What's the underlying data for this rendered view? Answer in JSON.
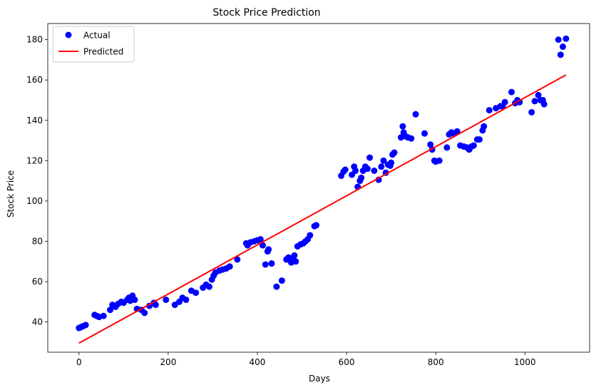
{
  "chart_data": {
    "type": "scatter",
    "title": "Stock Price Prediction",
    "xlabel": "Days",
    "ylabel": "Stock Price",
    "xlim": [
      -70,
      1145
    ],
    "ylim": [
      25,
      188
    ],
    "xticks": [
      0,
      200,
      400,
      600,
      800,
      1000
    ],
    "yticks": [
      40,
      60,
      80,
      100,
      120,
      140,
      160,
      180
    ],
    "grid": false,
    "legend_position": "top-left",
    "series": [
      {
        "name": "Actual",
        "kind": "scatter",
        "color": "#0000ff",
        "points": [
          [
            0,
            37
          ],
          [
            5,
            37.5
          ],
          [
            10,
            38
          ],
          [
            15,
            38.5
          ],
          [
            35,
            43.5
          ],
          [
            40,
            43
          ],
          [
            45,
            42.5
          ],
          [
            55,
            43
          ],
          [
            70,
            46
          ],
          [
            75,
            48.5
          ],
          [
            82,
            47.5
          ],
          [
            88,
            49
          ],
          [
            95,
            50
          ],
          [
            100,
            49.5
          ],
          [
            108,
            51
          ],
          [
            112,
            52
          ],
          [
            115,
            50.5
          ],
          [
            120,
            53
          ],
          [
            125,
            51
          ],
          [
            130,
            46.5
          ],
          [
            140,
            46
          ],
          [
            147,
            44.5
          ],
          [
            158,
            48
          ],
          [
            168,
            49.5
          ],
          [
            172,
            48.5
          ],
          [
            195,
            51
          ],
          [
            215,
            48.5
          ],
          [
            225,
            50
          ],
          [
            232,
            52
          ],
          [
            240,
            51
          ],
          [
            252,
            55.5
          ],
          [
            262,
            54.5
          ],
          [
            278,
            57
          ],
          [
            285,
            58.5
          ],
          [
            292,
            57.5
          ],
          [
            298,
            61
          ],
          [
            302,
            63
          ],
          [
            306,
            64.5
          ],
          [
            315,
            65.5
          ],
          [
            322,
            66
          ],
          [
            330,
            66.5
          ],
          [
            338,
            67.5
          ],
          [
            355,
            71
          ],
          [
            375,
            79
          ],
          [
            378,
            78
          ],
          [
            385,
            79.5
          ],
          [
            393,
            80
          ],
          [
            400,
            80.5
          ],
          [
            407,
            81
          ],
          [
            412,
            78
          ],
          [
            418,
            68.5
          ],
          [
            423,
            75
          ],
          [
            425,
            76
          ],
          [
            432,
            69
          ],
          [
            443,
            57.5
          ],
          [
            455,
            60.5
          ],
          [
            465,
            71
          ],
          [
            470,
            72
          ],
          [
            473,
            70.5
          ],
          [
            476,
            69.5
          ],
          [
            480,
            71.5
          ],
          [
            483,
            73
          ],
          [
            486,
            70
          ],
          [
            490,
            77.5
          ],
          [
            497,
            78.5
          ],
          [
            503,
            79
          ],
          [
            508,
            80
          ],
          [
            513,
            81
          ],
          [
            518,
            83
          ],
          [
            528,
            87.5
          ],
          [
            532,
            88
          ],
          [
            588,
            112.5
          ],
          [
            593,
            114.5
          ],
          [
            597,
            115.5
          ],
          [
            612,
            113
          ],
          [
            617,
            117
          ],
          [
            620,
            115
          ],
          [
            625,
            107
          ],
          [
            630,
            110
          ],
          [
            633,
            111.5
          ],
          [
            637,
            115
          ],
          [
            642,
            117
          ],
          [
            647,
            116
          ],
          [
            652,
            121.5
          ],
          [
            662,
            115
          ],
          [
            672,
            110.5
          ],
          [
            678,
            117
          ],
          [
            683,
            120
          ],
          [
            688,
            114
          ],
          [
            693,
            118
          ],
          [
            698,
            117.5
          ],
          [
            700,
            119
          ],
          [
            703,
            123
          ],
          [
            707,
            124
          ],
          [
            722,
            131.5
          ],
          [
            726,
            137
          ],
          [
            728,
            134
          ],
          [
            733,
            132
          ],
          [
            738,
            131.5
          ],
          [
            745,
            131
          ],
          [
            755,
            143
          ],
          [
            775,
            133.5
          ],
          [
            788,
            128
          ],
          [
            792,
            125.5
          ],
          [
            797,
            120
          ],
          [
            800,
            119.5
          ],
          [
            808,
            120
          ],
          [
            825,
            126.5
          ],
          [
            830,
            133
          ],
          [
            835,
            134
          ],
          [
            840,
            133.5
          ],
          [
            848,
            134.5
          ],
          [
            855,
            127.5
          ],
          [
            863,
            127
          ],
          [
            870,
            126.5
          ],
          [
            875,
            125.5
          ],
          [
            880,
            127
          ],
          [
            885,
            127.5
          ],
          [
            893,
            130.5
          ],
          [
            898,
            130.5
          ],
          [
            905,
            135
          ],
          [
            908,
            137
          ],
          [
            920,
            145
          ],
          [
            935,
            146
          ],
          [
            945,
            147
          ],
          [
            950,
            147
          ],
          [
            955,
            149
          ],
          [
            970,
            154
          ],
          [
            978,
            148.5
          ],
          [
            983,
            150
          ],
          [
            988,
            149
          ],
          [
            1015,
            144
          ],
          [
            1022,
            149.5
          ],
          [
            1030,
            152.5
          ],
          [
            1035,
            150
          ],
          [
            1040,
            150
          ],
          [
            1043,
            148
          ],
          [
            1075,
            180
          ],
          [
            1080,
            172.5
          ],
          [
            1085,
            176.5
          ],
          [
            1092,
            180.5
          ]
        ]
      },
      {
        "name": "Predicted",
        "kind": "line",
        "color": "#ff0000",
        "points": [
          [
            0,
            29.5
          ],
          [
            1092,
            162.5
          ]
        ]
      }
    ]
  }
}
